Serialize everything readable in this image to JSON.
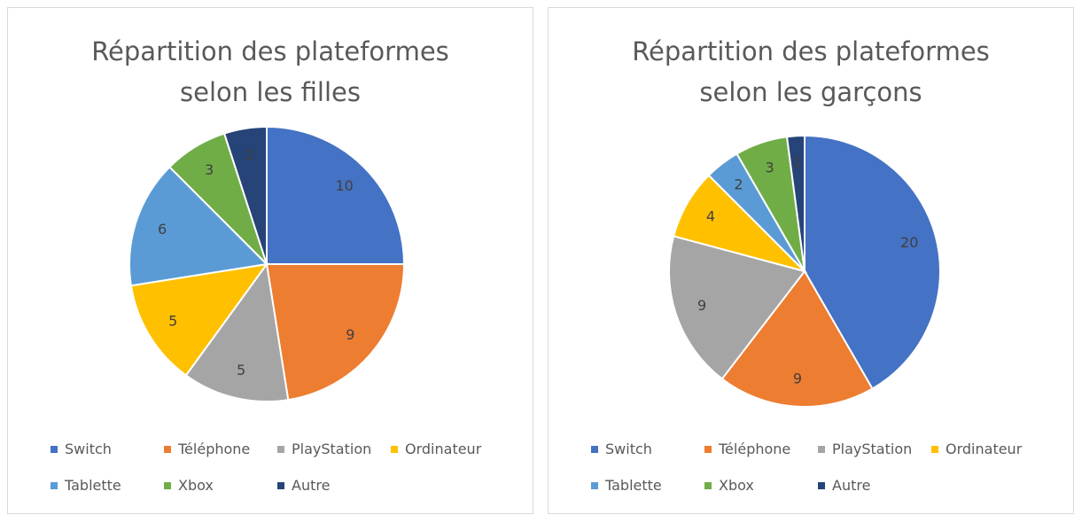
{
  "chart_data": [
    {
      "type": "pie",
      "title": "Répartition des plateformes selon les filles",
      "categories": [
        "Switch",
        "Téléphone",
        "PlayStation",
        "Ordinateur",
        "Tablette",
        "Xbox",
        "Autre"
      ],
      "values": [
        10,
        9,
        5,
        5,
        6,
        3,
        2
      ],
      "colors": [
        "#4472c4",
        "#ed7d31",
        "#a5a5a5",
        "#ffc000",
        "#5b9bd5",
        "#70ad47",
        "#264478"
      ],
      "legend": "bottom"
    },
    {
      "type": "pie",
      "title": "Répartition des plateformes selon les garçons",
      "categories": [
        "Switch",
        "Téléphone",
        "PlayStation",
        "Ordinateur",
        "Tablette",
        "Xbox",
        "Autre"
      ],
      "values": [
        20,
        9,
        9,
        4,
        2,
        3,
        1
      ],
      "colors": [
        "#4472c4",
        "#ed7d31",
        "#a5a5a5",
        "#ffc000",
        "#5b9bd5",
        "#70ad47",
        "#264478"
      ],
      "legend": "bottom"
    }
  ]
}
